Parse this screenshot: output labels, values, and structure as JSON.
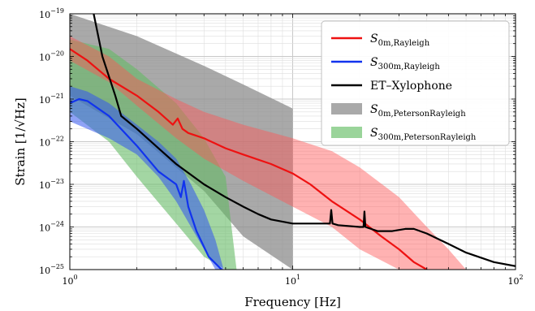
{
  "chart_data": {
    "type": "area",
    "xlabel": "Frequency [Hz]",
    "ylabel": "Strain [1/√Hz]",
    "xscale": "log",
    "yscale": "log",
    "xlim": [
      1,
      100
    ],
    "ylim": [
      1e-25,
      1e-19
    ],
    "grid": true,
    "legend_position": "top-right",
    "x_tick_labels": [
      {
        "base": "10",
        "exp": "0"
      },
      {
        "base": "10",
        "exp": "1"
      },
      {
        "base": "10",
        "exp": "2"
      }
    ],
    "y_tick_labels": [
      {
        "base": "10",
        "exp": "−25"
      },
      {
        "base": "10",
        "exp": "−24"
      },
      {
        "base": "10",
        "exp": "−23"
      },
      {
        "base": "10",
        "exp": "−22"
      },
      {
        "base": "10",
        "exp": "−21"
      },
      {
        "base": "10",
        "exp": "−20"
      },
      {
        "base": "10",
        "exp": "−19"
      }
    ],
    "legend": [
      {
        "kind": "line",
        "main": "S",
        "sub": "0m,Rayleigh",
        "color": "#ee1111"
      },
      {
        "kind": "line",
        "main": "S",
        "sub": "300m,Rayleigh",
        "color": "#1133ee"
      },
      {
        "kind": "line",
        "main": "ET–Xylophone",
        "sub": "",
        "color": "#000000"
      },
      {
        "kind": "patch",
        "main": "S",
        "sub": "0m,PetersonRayleigh",
        "color": "#9a9a9a"
      },
      {
        "kind": "patch",
        "main": "S",
        "sub": "300m,PetersonRayleigh",
        "color": "#88cc88"
      }
    ],
    "bands": [
      {
        "name": "S_0m,PetersonRayleigh",
        "color": "#8c8c8c",
        "opacity": 0.75,
        "x": [
          1,
          2,
          4,
          6,
          10
        ],
        "lower": [
          1.2e-21,
          1.5e-22,
          7e-24,
          6e-25,
          1e-25
        ],
        "upper": [
          1e-19,
          3e-20,
          6e-21,
          2.2e-21,
          6e-22
        ]
      },
      {
        "name": "S_300m,PetersonRayleigh",
        "color": "#66bb66",
        "opacity": 0.6,
        "x": [
          1,
          1.5,
          2,
          3,
          4,
          5,
          5.6
        ],
        "lower": [
          5e-22,
          1e-22,
          1.5e-23,
          1.2e-24,
          2e-25,
          1e-25,
          1e-25
        ],
        "upper": [
          2.5e-20,
          1.5e-20,
          5e-21,
          8e-22,
          1.2e-22,
          1.5e-23,
          1e-25
        ]
      },
      {
        "name": "S_0m,Rayleigh band",
        "color": "#ff5555",
        "opacity": 0.45,
        "x": [
          1,
          1.5,
          2,
          3,
          4,
          6,
          10,
          15,
          20,
          30,
          40,
          50,
          60
        ],
        "lower": [
          8e-21,
          2.5e-21,
          7e-22,
          1.2e-22,
          4e-23,
          1.2e-23,
          3e-24,
          1e-24,
          3e-25,
          1e-25,
          1e-25,
          1e-25,
          1e-25
        ],
        "upper": [
          3e-20,
          1e-20,
          3e-21,
          1e-21,
          5e-22,
          2.5e-22,
          1.2e-22,
          6e-23,
          2.5e-23,
          5e-24,
          1e-24,
          3e-25,
          1e-25
        ]
      },
      {
        "name": "S_300m,Rayleigh band",
        "color": "#3355ee",
        "opacity": 0.55,
        "x": [
          1,
          1.2,
          1.5,
          2,
          2.5,
          3,
          3.5,
          4,
          4.5,
          4.9
        ],
        "lower": [
          3e-22,
          2e-22,
          1.2e-22,
          5e-23,
          1.5e-23,
          4e-24,
          1e-24,
          3e-25,
          1e-25,
          1e-25
        ],
        "upper": [
          2e-21,
          1.5e-21,
          8e-22,
          2.5e-22,
          1e-22,
          4e-23,
          1e-23,
          2.5e-24,
          5e-25,
          1e-25
        ]
      }
    ],
    "series": [
      {
        "name": "S_0m,Rayleigh",
        "color": "#ee1111",
        "width": 2.2,
        "x": [
          1,
          1.2,
          1.5,
          2,
          2.5,
          2.9,
          3.05,
          3.2,
          3.4,
          4,
          5,
          6,
          8,
          10,
          12,
          15,
          20,
          25,
          30,
          35,
          40
        ],
        "y": [
          1.5e-20,
          8e-21,
          3e-21,
          1.2e-21,
          5e-22,
          2.5e-22,
          3.5e-22,
          2e-22,
          1.6e-22,
          1.2e-22,
          7e-23,
          5e-23,
          3e-23,
          1.8e-23,
          1e-23,
          4e-24,
          1.5e-24,
          6e-25,
          3e-25,
          1.5e-25,
          1e-25
        ]
      },
      {
        "name": "S_300m,Rayleigh",
        "color": "#1133ee",
        "width": 2.2,
        "x": [
          1,
          1.1,
          1.2,
          1.5,
          2,
          2.5,
          2.8,
          3.0,
          3.15,
          3.25,
          3.4,
          3.7,
          4.2,
          4.8
        ],
        "y": [
          8e-22,
          1e-21,
          9e-22,
          4e-22,
          8e-23,
          2e-23,
          1.3e-23,
          1e-23,
          5e-24,
          1.2e-23,
          3e-24,
          8e-25,
          2e-25,
          1e-25
        ]
      },
      {
        "name": "ET–Xylophone",
        "color": "#000000",
        "width": 2.2,
        "x": [
          1.28,
          1.4,
          1.6,
          1.7,
          2,
          2.5,
          3,
          4,
          5,
          6,
          7,
          8,
          10,
          12,
          14.7,
          14.9,
          15.1,
          16,
          20,
          20.8,
          21,
          21.2,
          24,
          28,
          32,
          35,
          40,
          50,
          60,
          80,
          100
        ],
        "y": [
          1e-19,
          1e-20,
          1.2e-21,
          4e-22,
          2e-22,
          7e-23,
          3e-23,
          1e-23,
          5e-24,
          3e-24,
          2e-24,
          1.5e-24,
          1.2e-24,
          1.2e-24,
          1.2e-24,
          2.5e-24,
          1.2e-24,
          1.1e-24,
          1e-24,
          1e-24,
          2.3e-24,
          1e-24,
          8e-25,
          8e-25,
          9e-25,
          9e-25,
          7e-25,
          4e-25,
          2.5e-25,
          1.5e-25,
          1.2e-25
        ]
      }
    ]
  }
}
